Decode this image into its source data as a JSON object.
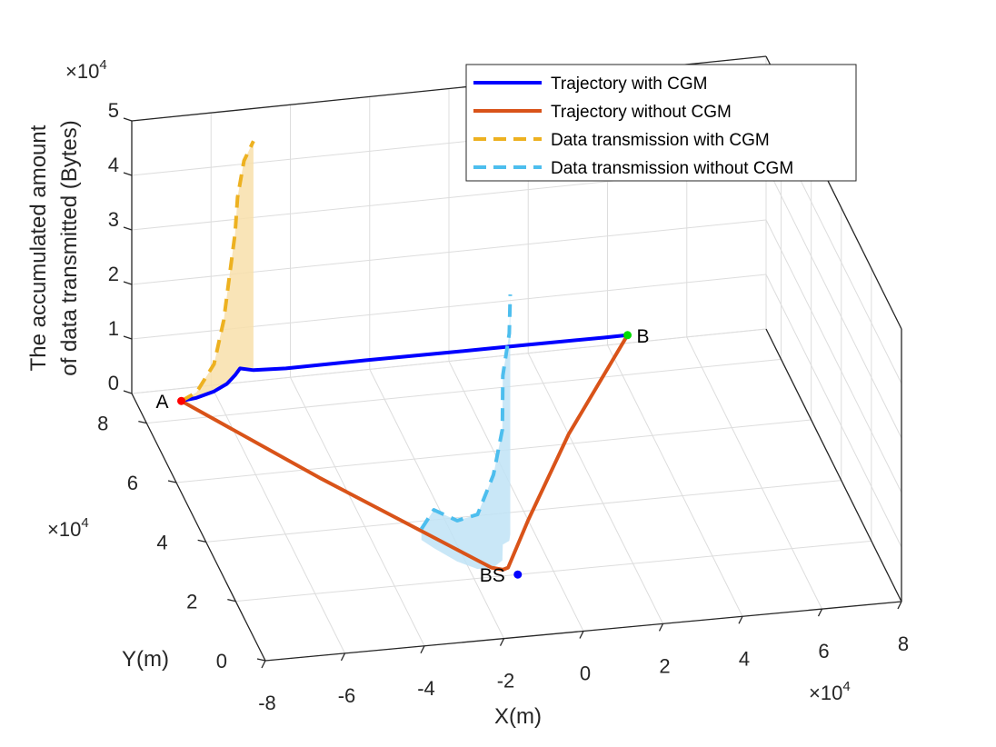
{
  "chart_data": {
    "type": "line3d",
    "zlabel_line1": "The accumulated amount",
    "zlabel_line2": "of data transmitted (Bytes)",
    "xlabel": "X(m)",
    "ylabel": "Y(m)",
    "x_exponent": "10",
    "x_exponent_power": "4",
    "y_exponent": "10",
    "y_exponent_power": "4",
    "z_exponent": "10",
    "z_exponent_power": "4",
    "x_ticks": [
      "-8",
      "-6",
      "-4",
      "-2",
      "0",
      "2",
      "4",
      "6",
      "8"
    ],
    "y_ticks": [
      "0",
      "2",
      "4",
      "6",
      "8"
    ],
    "z_ticks": [
      "0",
      "1",
      "2",
      "3",
      "4",
      "5"
    ],
    "xlim": [
      -8,
      8
    ],
    "ylim": [
      0,
      9
    ],
    "zlim": [
      0,
      5
    ],
    "grid": true,
    "legend_position": "top-right",
    "colors": {
      "with_cgm": "#0000ff",
      "without_cgm": "#d95319",
      "data_with_cgm": "#edb120",
      "data_without_cgm": "#4dbeee",
      "fill_with_cgm": "#f8dfaa",
      "fill_without_cgm": "#bfe3f6",
      "point_a": "#ff0000",
      "point_b": "#00dd00",
      "point_bs": "#0000ff"
    },
    "series": [
      {
        "name": "Trajectory with CGM",
        "style": "solid",
        "points": [
          [
            -6.9,
            8.6
          ],
          [
            -6.5,
            8.65
          ],
          [
            -6.0,
            8.8
          ],
          [
            -5.6,
            9.0
          ],
          [
            -5.3,
            9.25
          ],
          [
            -5.1,
            9.45
          ],
          [
            -4.8,
            9.35
          ],
          [
            -4.0,
            9.3
          ],
          [
            -2.0,
            9.3
          ],
          [
            0.0,
            9.28
          ],
          [
            2.0,
            9.27
          ],
          [
            4.0,
            9.25
          ],
          [
            4.6,
            9.25
          ]
        ]
      },
      {
        "name": "Trajectory without CGM",
        "style": "solid",
        "points": [
          [
            -6.9,
            8.6
          ],
          [
            -4.5,
            5.7
          ],
          [
            -1.45,
            2.3
          ],
          [
            -1.2,
            2.2
          ],
          [
            -1.05,
            2.25
          ],
          [
            0.0,
            3.7
          ],
          [
            2.0,
            6.3
          ],
          [
            4.6,
            9.25
          ]
        ]
      },
      {
        "name": "Data transmission with CGM",
        "style": "dashed",
        "points": [
          [
            -6.9,
            8.6,
            0.0
          ],
          [
            -6.5,
            8.65,
            0.1
          ],
          [
            -6.0,
            8.8,
            0.5
          ],
          [
            -5.7,
            8.95,
            1.2
          ],
          [
            -5.5,
            9.1,
            1.9
          ],
          [
            -5.3,
            9.25,
            2.6
          ],
          [
            -5.2,
            9.35,
            3.2
          ],
          [
            -5.0,
            9.45,
            3.8
          ],
          [
            -4.8,
            9.35,
            4.2
          ]
        ]
      },
      {
        "name": "Data transmission without CGM",
        "style": "dashed",
        "points": [
          [
            -2.8,
            3.4,
            0.2
          ],
          [
            -2.6,
            3.1,
            0.7
          ],
          [
            -2.2,
            2.6,
            0.75
          ],
          [
            -1.8,
            2.3,
            1.0
          ],
          [
            -1.4,
            2.3,
            1.7
          ],
          [
            -1.1,
            2.5,
            2.4
          ],
          [
            -0.9,
            3.0,
            3.1
          ],
          [
            -0.7,
            3.1,
            3.8
          ],
          [
            -0.6,
            3.3,
            4.4
          ]
        ]
      }
    ],
    "annotations": [
      {
        "label": "A",
        "point": [
          -6.9,
          8.6
        ]
      },
      {
        "label": "B",
        "point": [
          4.6,
          9.25
        ]
      },
      {
        "label": "BS",
        "point": [
          -0.9,
          2.0
        ]
      }
    ]
  }
}
